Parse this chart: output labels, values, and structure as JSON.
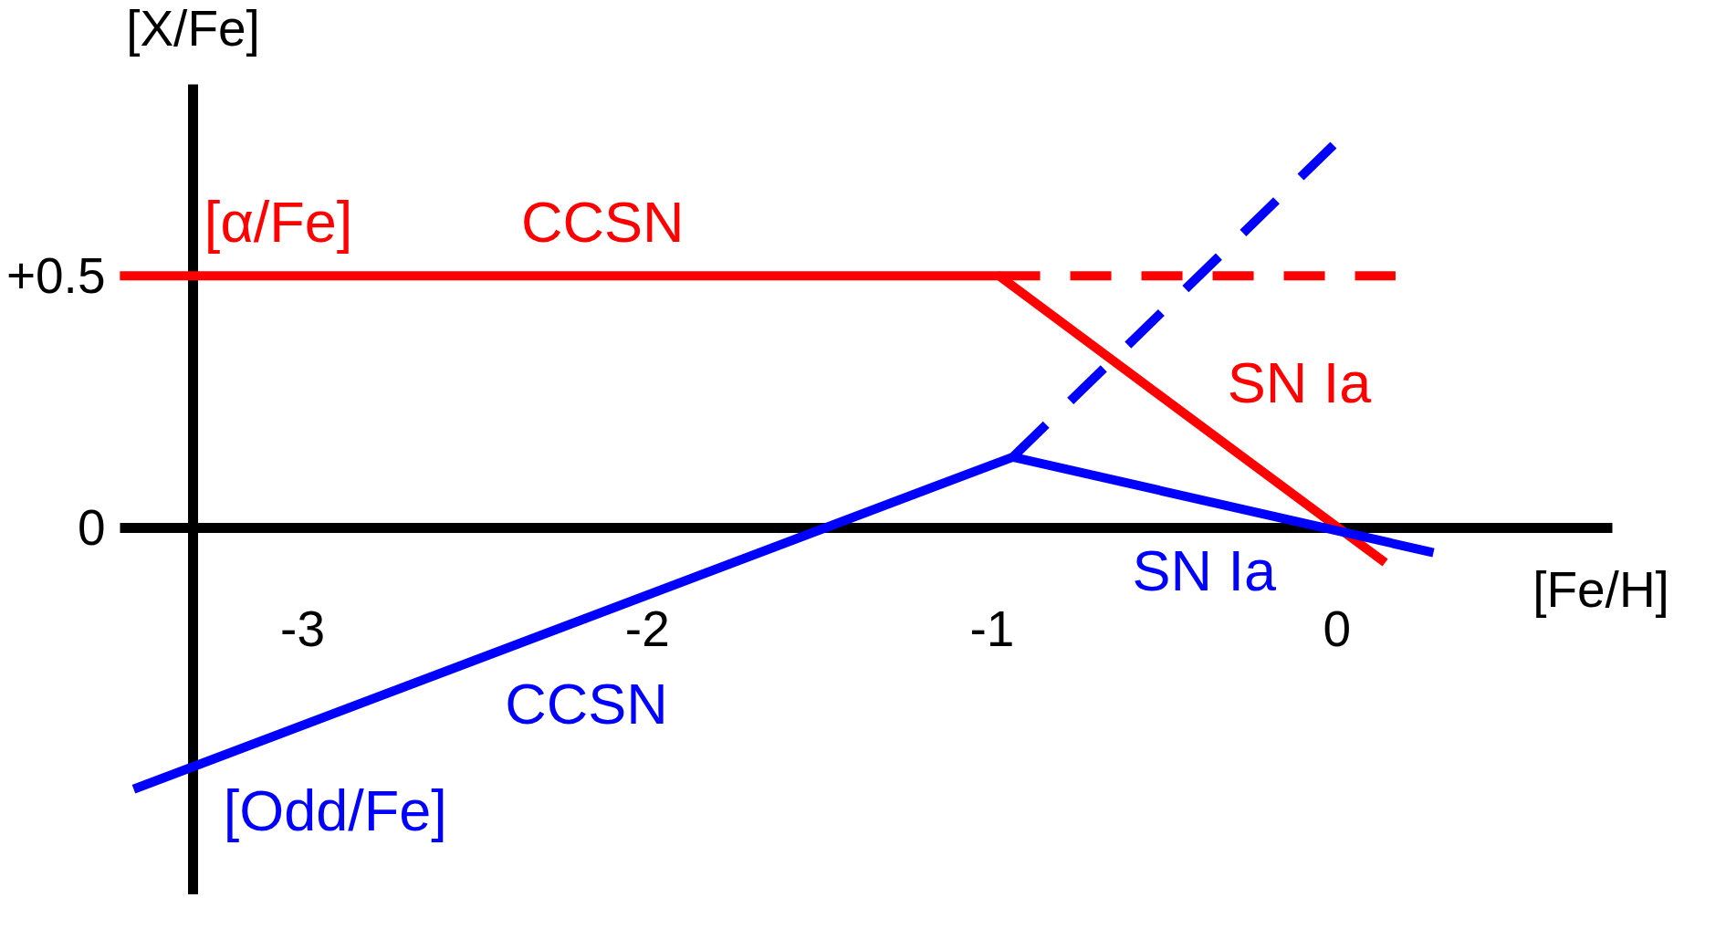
{
  "chart_data": {
    "type": "line",
    "xlabel": "[Fe/H]",
    "ylabel": "[X/Fe]",
    "xlim": [
      -3.53,
      0.8
    ],
    "ylim": [
      -0.73,
      0.88
    ],
    "xticks": [
      -3,
      -2,
      -1,
      0
    ],
    "yticks": [
      0,
      {
        "value": 0.5,
        "label": "+0.5"
      }
    ],
    "grid": false,
    "line_style": "solid",
    "series": [
      {
        "color": "#ff0000",
        "x": [
          -3.53,
          -0.98,
          0.14
        ],
        "values": [
          0.5,
          0.5,
          -0.07
        ]
      },
      {
        "color": "#ff0000",
        "line_style": "dashed",
        "x": [
          -0.98,
          0.17
        ],
        "values": [
          0.5,
          0.5
        ]
      },
      {
        "color": "#0000ff",
        "x": [
          -3.49,
          -0.94,
          0.28
        ],
        "values": [
          -0.52,
          0.14,
          -0.05
        ]
      },
      {
        "color": "#0000ff",
        "line_style": "dashed",
        "x": [
          -0.94,
          -0.01
        ],
        "values": [
          0.14,
          0.76
        ]
      }
    ],
    "annotations": [
      {
        "text": "CCSN",
        "x": -2.13,
        "y": 0.5
      },
      {
        "text": "[α/Fe]",
        "x": -3.07,
        "y": 0.5
      },
      {
        "text": "SN Ia",
        "x": -0.27,
        "y": 0.14
      },
      {
        "text": "SN Ia",
        "x": -0.34,
        "y": 0.05
      },
      {
        "text": "CCSN",
        "x": -2.26,
        "y": -0.2
      },
      {
        "text": "[Odd/Fe]",
        "x": -3.0,
        "y": -0.39
      }
    ]
  }
}
